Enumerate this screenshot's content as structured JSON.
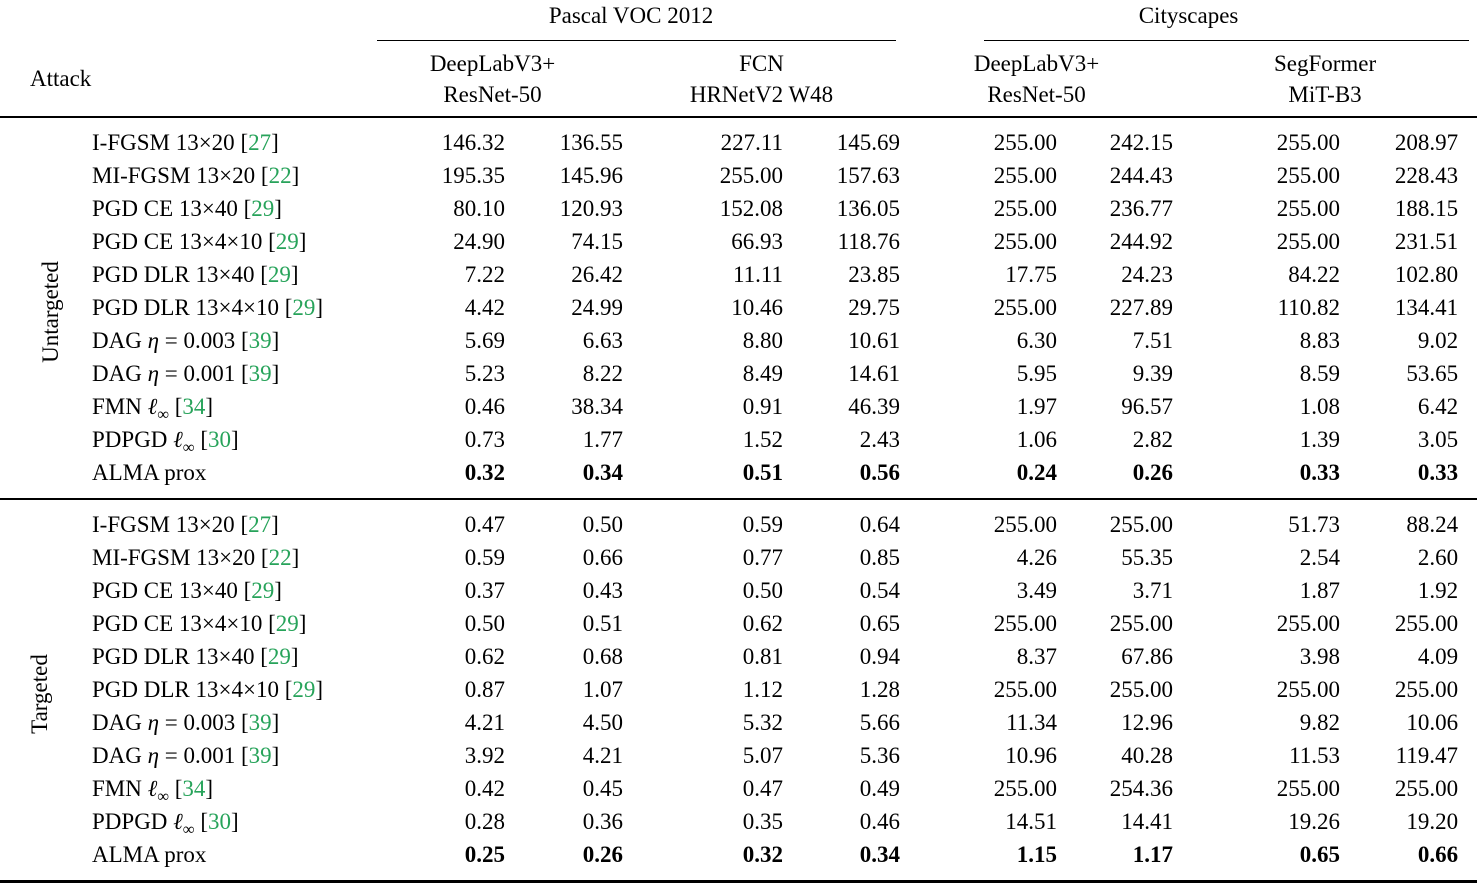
{
  "colors": {
    "citation_green": "#27a35a",
    "text": "#000000",
    "rule": "#000000",
    "background": "#ffffff"
  },
  "table": {
    "attack_column_label": "Attack",
    "groups": [
      {
        "label": "Pascal VOC 2012",
        "models": [
          {
            "line1": "DeepLabV3+",
            "line2": "ResNet-50"
          },
          {
            "line1": "FCN",
            "line2": "HRNetV2 W48"
          }
        ]
      },
      {
        "label": "Cityscapes",
        "models": [
          {
            "line1": "DeepLabV3+",
            "line2": "ResNet-50"
          },
          {
            "line1": "SegFormer",
            "line2": "MiT-B3"
          }
        ]
      }
    ],
    "sections": [
      {
        "label": "Untargeted",
        "rows": [
          {
            "attack": [
              {
                "t": "I-FGSM 13×20"
              }
            ],
            "cite": "27",
            "bold": false,
            "values": [
              "146.32",
              "136.55",
              "227.11",
              "145.69",
              "255.00",
              "242.15",
              "255.00",
              "208.97"
            ]
          },
          {
            "attack": [
              {
                "t": "MI-FGSM 13×20"
              }
            ],
            "cite": "22",
            "bold": false,
            "values": [
              "195.35",
              "145.96",
              "255.00",
              "157.63",
              "255.00",
              "244.43",
              "255.00",
              "228.43"
            ]
          },
          {
            "attack": [
              {
                "t": "PGD CE 13×40"
              }
            ],
            "cite": "29",
            "bold": false,
            "values": [
              "80.10",
              "120.93",
              "152.08",
              "136.05",
              "255.00",
              "236.77",
              "255.00",
              "188.15"
            ]
          },
          {
            "attack": [
              {
                "t": "PGD CE 13×4×10"
              }
            ],
            "cite": "29",
            "bold": false,
            "values": [
              "24.90",
              "74.15",
              "66.93",
              "118.76",
              "255.00",
              "244.92",
              "255.00",
              "231.51"
            ]
          },
          {
            "attack": [
              {
                "t": "PGD DLR 13×40"
              }
            ],
            "cite": "29",
            "bold": false,
            "values": [
              "7.22",
              "26.42",
              "11.11",
              "23.85",
              "17.75",
              "24.23",
              "84.22",
              "102.80"
            ]
          },
          {
            "attack": [
              {
                "t": "PGD DLR 13×4×10"
              }
            ],
            "cite": "29",
            "bold": false,
            "values": [
              "4.42",
              "24.99",
              "10.46",
              "29.75",
              "255.00",
              "227.89",
              "110.82",
              "134.41"
            ]
          },
          {
            "attack": [
              {
                "t": "DAG "
              },
              {
                "t": "η",
                "i": true
              },
              {
                "t": " = 0.003"
              }
            ],
            "cite": "39",
            "bold": false,
            "values": [
              "5.69",
              "6.63",
              "8.80",
              "10.61",
              "6.30",
              "7.51",
              "8.83",
              "9.02"
            ]
          },
          {
            "attack": [
              {
                "t": "DAG "
              },
              {
                "t": "η",
                "i": true
              },
              {
                "t": " = 0.001"
              }
            ],
            "cite": "39",
            "bold": false,
            "values": [
              "5.23",
              "8.22",
              "8.49",
              "14.61",
              "5.95",
              "9.39",
              "8.59",
              "53.65"
            ]
          },
          {
            "attack": [
              {
                "t": "FMN "
              },
              {
                "t": "ℓ",
                "i": true
              },
              {
                "t": "∞",
                "sub": true
              }
            ],
            "cite": "34",
            "bold": false,
            "values": [
              "0.46",
              "38.34",
              "0.91",
              "46.39",
              "1.97",
              "96.57",
              "1.08",
              "6.42"
            ]
          },
          {
            "attack": [
              {
                "t": "PDPGD "
              },
              {
                "t": "ℓ",
                "i": true
              },
              {
                "t": "∞",
                "sub": true
              }
            ],
            "cite": "30",
            "bold": false,
            "values": [
              "0.73",
              "1.77",
              "1.52",
              "2.43",
              "1.06",
              "2.82",
              "1.39",
              "3.05"
            ]
          },
          {
            "attack": [
              {
                "t": "ALMA prox"
              }
            ],
            "cite": null,
            "bold": true,
            "values": [
              "0.32",
              "0.34",
              "0.51",
              "0.56",
              "0.24",
              "0.26",
              "0.33",
              "0.33"
            ]
          }
        ]
      },
      {
        "label": "Targeted",
        "rows": [
          {
            "attack": [
              {
                "t": "I-FGSM 13×20"
              }
            ],
            "cite": "27",
            "bold": false,
            "values": [
              "0.47",
              "0.50",
              "0.59",
              "0.64",
              "255.00",
              "255.00",
              "51.73",
              "88.24"
            ]
          },
          {
            "attack": [
              {
                "t": "MI-FGSM 13×20"
              }
            ],
            "cite": "22",
            "bold": false,
            "values": [
              "0.59",
              "0.66",
              "0.77",
              "0.85",
              "4.26",
              "55.35",
              "2.54",
              "2.60"
            ]
          },
          {
            "attack": [
              {
                "t": "PGD CE 13×40"
              }
            ],
            "cite": "29",
            "bold": false,
            "values": [
              "0.37",
              "0.43",
              "0.50",
              "0.54",
              "3.49",
              "3.71",
              "1.87",
              "1.92"
            ]
          },
          {
            "attack": [
              {
                "t": "PGD CE 13×4×10"
              }
            ],
            "cite": "29",
            "bold": false,
            "values": [
              "0.50",
              "0.51",
              "0.62",
              "0.65",
              "255.00",
              "255.00",
              "255.00",
              "255.00"
            ]
          },
          {
            "attack": [
              {
                "t": "PGD DLR 13×40"
              }
            ],
            "cite": "29",
            "bold": false,
            "values": [
              "0.62",
              "0.68",
              "0.81",
              "0.94",
              "8.37",
              "67.86",
              "3.98",
              "4.09"
            ]
          },
          {
            "attack": [
              {
                "t": "PGD DLR 13×4×10"
              }
            ],
            "cite": "29",
            "bold": false,
            "values": [
              "0.87",
              "1.07",
              "1.12",
              "1.28",
              "255.00",
              "255.00",
              "255.00",
              "255.00"
            ]
          },
          {
            "attack": [
              {
                "t": "DAG "
              },
              {
                "t": "η",
                "i": true
              },
              {
                "t": " = 0.003"
              }
            ],
            "cite": "39",
            "bold": false,
            "values": [
              "4.21",
              "4.50",
              "5.32",
              "5.66",
              "11.34",
              "12.96",
              "9.82",
              "10.06"
            ]
          },
          {
            "attack": [
              {
                "t": "DAG "
              },
              {
                "t": "η",
                "i": true
              },
              {
                "t": " = 0.001"
              }
            ],
            "cite": "39",
            "bold": false,
            "values": [
              "3.92",
              "4.21",
              "5.07",
              "5.36",
              "10.96",
              "40.28",
              "11.53",
              "119.47"
            ]
          },
          {
            "attack": [
              {
                "t": "FMN "
              },
              {
                "t": "ℓ",
                "i": true
              },
              {
                "t": "∞",
                "sub": true
              }
            ],
            "cite": "34",
            "bold": false,
            "values": [
              "0.42",
              "0.45",
              "0.47",
              "0.49",
              "255.00",
              "254.36",
              "255.00",
              "255.00"
            ]
          },
          {
            "attack": [
              {
                "t": "PDPGD "
              },
              {
                "t": "ℓ",
                "i": true
              },
              {
                "t": "∞",
                "sub": true
              }
            ],
            "cite": "30",
            "bold": false,
            "values": [
              "0.28",
              "0.36",
              "0.35",
              "0.46",
              "14.51",
              "14.41",
              "19.26",
              "19.20"
            ]
          },
          {
            "attack": [
              {
                "t": "ALMA prox"
              }
            ],
            "cite": null,
            "bold": true,
            "values": [
              "0.25",
              "0.26",
              "0.32",
              "0.34",
              "1.15",
              "1.17",
              "0.65",
              "0.66"
            ]
          }
        ]
      }
    ]
  }
}
